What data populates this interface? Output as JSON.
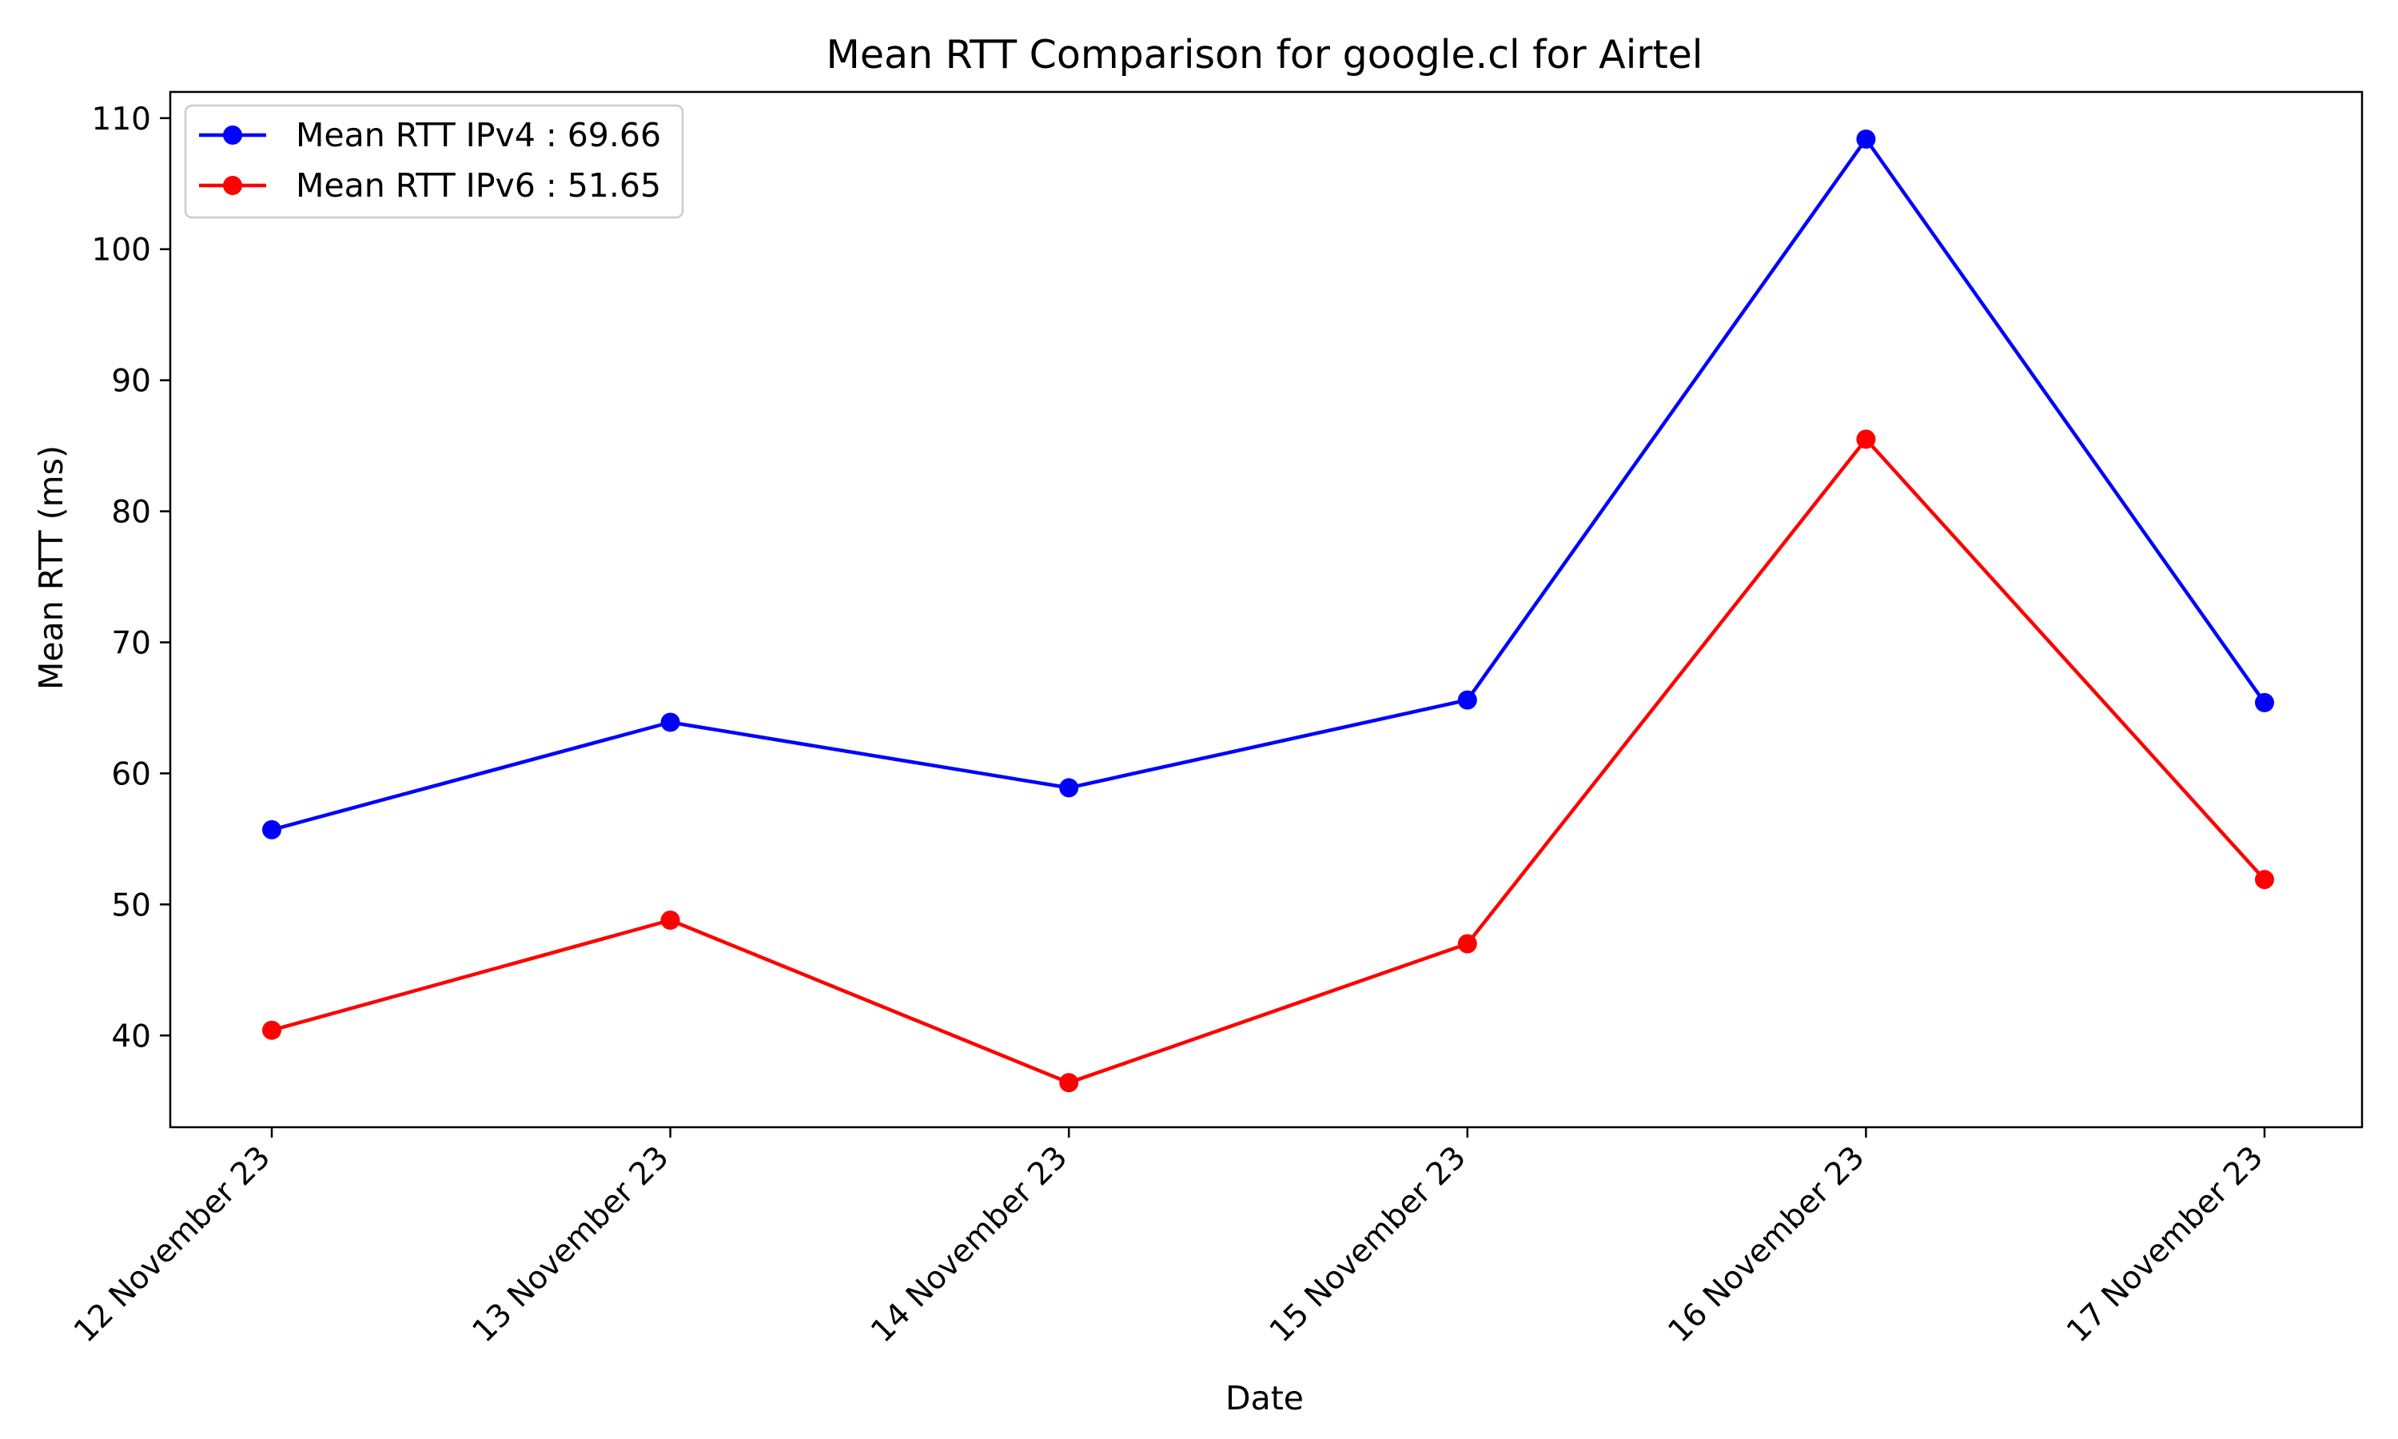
{
  "chart_data": {
    "type": "line",
    "title": "Mean RTT Comparison for google.cl for Airtel",
    "xlabel": "Date",
    "ylabel": "Mean RTT (ms)",
    "categories": [
      "12 November 23",
      "13 November 23",
      "14 November 23",
      "15 November 23",
      "16 November 23",
      "17 November 23"
    ],
    "yticks": [
      "40",
      "50",
      "60",
      "70",
      "80",
      "90",
      "100",
      "110"
    ],
    "ylim": [
      33,
      112
    ],
    "grid": false,
    "legend_position": "top-left",
    "series": [
      {
        "name": "Mean RTT IPv4 : 69.66",
        "color": "#0000ff",
        "marker": "circle",
        "values": [
          55.7,
          63.9,
          58.9,
          65.6,
          108.4,
          65.4
        ]
      },
      {
        "name": "Mean RTT IPv6 : 51.65",
        "color": "#ff0000",
        "marker": "circle",
        "values": [
          40.4,
          48.8,
          36.4,
          47.0,
          85.5,
          51.9
        ]
      }
    ]
  }
}
